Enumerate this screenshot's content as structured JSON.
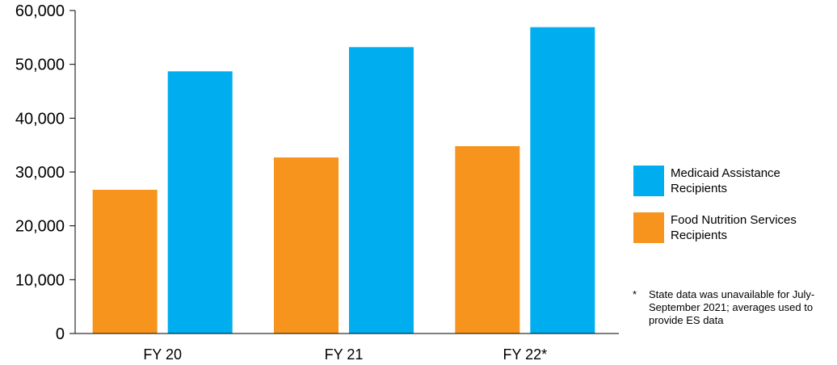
{
  "chart_data": {
    "type": "bar",
    "categories": [
      "FY 20",
      "FY 21",
      "FY 22*"
    ],
    "series": [
      {
        "name": "Food Nutrition Services Recipients",
        "color": "#F7941D",
        "values": [
          26700,
          32700,
          34800
        ]
      },
      {
        "name": "Medicaid Assistance Recipients",
        "color": "#00AEEF",
        "values": [
          48700,
          53200,
          56900
        ]
      }
    ],
    "yticks": [
      "0",
      "10,000",
      "20,000",
      "30,000",
      "40,000",
      "50,000",
      "60,000"
    ],
    "ylim": [
      0,
      60000
    ],
    "xlabel": "",
    "ylabel": "",
    "legend": [
      {
        "label": "Medicaid Assistance Recipients",
        "color": "#00AEEF"
      },
      {
        "label": "Food Nutrition Services Recipients",
        "color": "#F7941D"
      }
    ],
    "legend_position": "right",
    "footnote": {
      "marker": "*",
      "text": "State data was unavailable for July-September 2021; averages used to provide ES data"
    }
  }
}
